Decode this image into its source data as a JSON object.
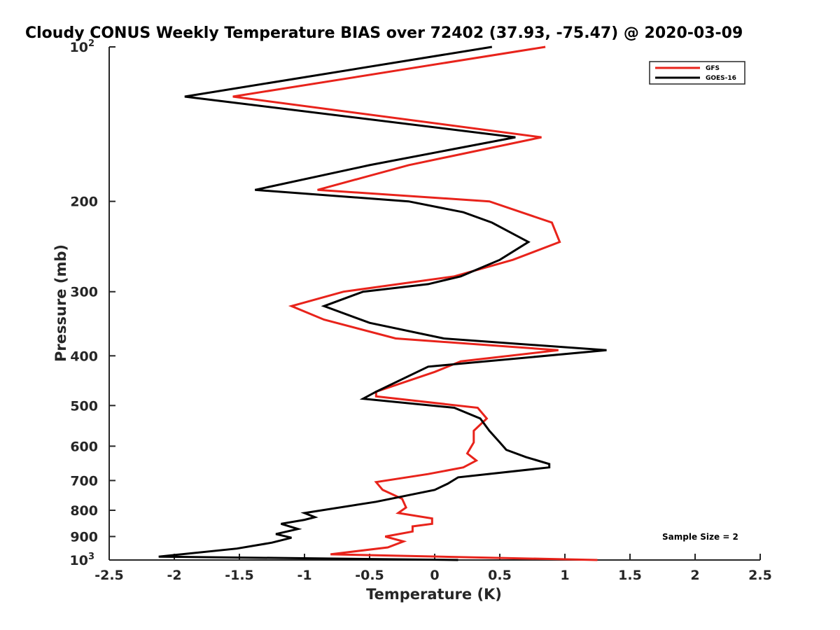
{
  "chart_data": {
    "type": "line",
    "title": "Cloudy CONUS Weekly Temperature BIAS over 72402 (37.93, -75.47) @ 2020-03-09",
    "xlabel": "Temperature (K)",
    "ylabel": "Pressure (mb)",
    "xlim": [
      -2.5,
      2.5
    ],
    "ylim": [
      100,
      1000
    ],
    "y_scale": "log",
    "y_reversed": true,
    "grid": false,
    "legend_position": "top-right",
    "x_ticks": [
      "-2.5",
      "-2",
      "-1.5",
      "-1",
      "-0.5",
      "0",
      "0.5",
      "1",
      "1.5",
      "2",
      "2.5"
    ],
    "y_ticks": [
      {
        "value": 100,
        "base": "10",
        "exp": "2"
      },
      {
        "value": 200,
        "base": "200",
        "exp": ""
      },
      {
        "value": 300,
        "base": "300",
        "exp": ""
      },
      {
        "value": 400,
        "base": "400",
        "exp": ""
      },
      {
        "value": 500,
        "base": "500",
        "exp": ""
      },
      {
        "value": 600,
        "base": "600",
        "exp": ""
      },
      {
        "value": 700,
        "base": "700",
        "exp": ""
      },
      {
        "value": 800,
        "base": "800",
        "exp": ""
      },
      {
        "value": 900,
        "base": "900",
        "exp": ""
      },
      {
        "value": 1000,
        "base": "10",
        "exp": "3"
      }
    ],
    "annotation": "Sample Size = 2",
    "series": [
      {
        "name": "GFS",
        "color": "#e8231b",
        "points": [
          [
            0.85,
            100
          ],
          [
            -1.55,
            125
          ],
          [
            0.82,
            150
          ],
          [
            -0.2,
            170
          ],
          [
            -0.9,
            190
          ],
          [
            0.42,
            200
          ],
          [
            0.9,
            220
          ],
          [
            0.96,
            240
          ],
          [
            0.6,
            260
          ],
          [
            0.15,
            280
          ],
          [
            -0.7,
            300
          ],
          [
            -1.1,
            320
          ],
          [
            -0.85,
            340
          ],
          [
            -0.3,
            370
          ],
          [
            0.95,
            390
          ],
          [
            0.2,
            410
          ],
          [
            0.0,
            430
          ],
          [
            -0.45,
            470
          ],
          [
            -0.45,
            480
          ],
          [
            0.33,
            505
          ],
          [
            0.4,
            530
          ],
          [
            0.3,
            560
          ],
          [
            0.3,
            590
          ],
          [
            0.25,
            620
          ],
          [
            0.32,
            640
          ],
          [
            0.22,
            660
          ],
          [
            -0.05,
            680
          ],
          [
            -0.45,
            705
          ],
          [
            -0.4,
            730
          ],
          [
            -0.25,
            760
          ],
          [
            -0.22,
            790
          ],
          [
            -0.28,
            810
          ],
          [
            -0.02,
            830
          ],
          [
            -0.02,
            850
          ],
          [
            -0.17,
            860
          ],
          [
            -0.17,
            880
          ],
          [
            -0.38,
            900
          ],
          [
            -0.24,
            920
          ],
          [
            -0.36,
            945
          ],
          [
            -0.8,
            975
          ],
          [
            1.25,
            1000
          ]
        ]
      },
      {
        "name": "GOES-16",
        "color": "#000000",
        "points": [
          [
            0.44,
            100
          ],
          [
            -1.92,
            125
          ],
          [
            0.62,
            150
          ],
          [
            -0.5,
            170
          ],
          [
            -1.38,
            190
          ],
          [
            -0.2,
            200
          ],
          [
            0.22,
            210
          ],
          [
            0.44,
            220
          ],
          [
            0.72,
            240
          ],
          [
            0.5,
            260
          ],
          [
            0.2,
            280
          ],
          [
            -0.05,
            290
          ],
          [
            -0.55,
            300
          ],
          [
            -0.85,
            320
          ],
          [
            -0.5,
            345
          ],
          [
            0.07,
            370
          ],
          [
            1.32,
            390
          ],
          [
            -0.05,
            420
          ],
          [
            -0.45,
            470
          ],
          [
            -0.55,
            485
          ],
          [
            0.15,
            505
          ],
          [
            0.35,
            530
          ],
          [
            0.42,
            560
          ],
          [
            0.5,
            590
          ],
          [
            0.55,
            610
          ],
          [
            0.7,
            630
          ],
          [
            0.88,
            650
          ],
          [
            0.88,
            660
          ],
          [
            0.18,
            690
          ],
          [
            0.1,
            710
          ],
          [
            0.0,
            730
          ],
          [
            -0.45,
            770
          ],
          [
            -1.0,
            810
          ],
          [
            -0.92,
            825
          ],
          [
            -1.0,
            835
          ],
          [
            -1.18,
            850
          ],
          [
            -1.05,
            870
          ],
          [
            -1.22,
            890
          ],
          [
            -1.1,
            905
          ],
          [
            -1.25,
            925
          ],
          [
            -1.52,
            950
          ],
          [
            -2.12,
            985
          ],
          [
            0.18,
            1000
          ]
        ]
      }
    ]
  }
}
